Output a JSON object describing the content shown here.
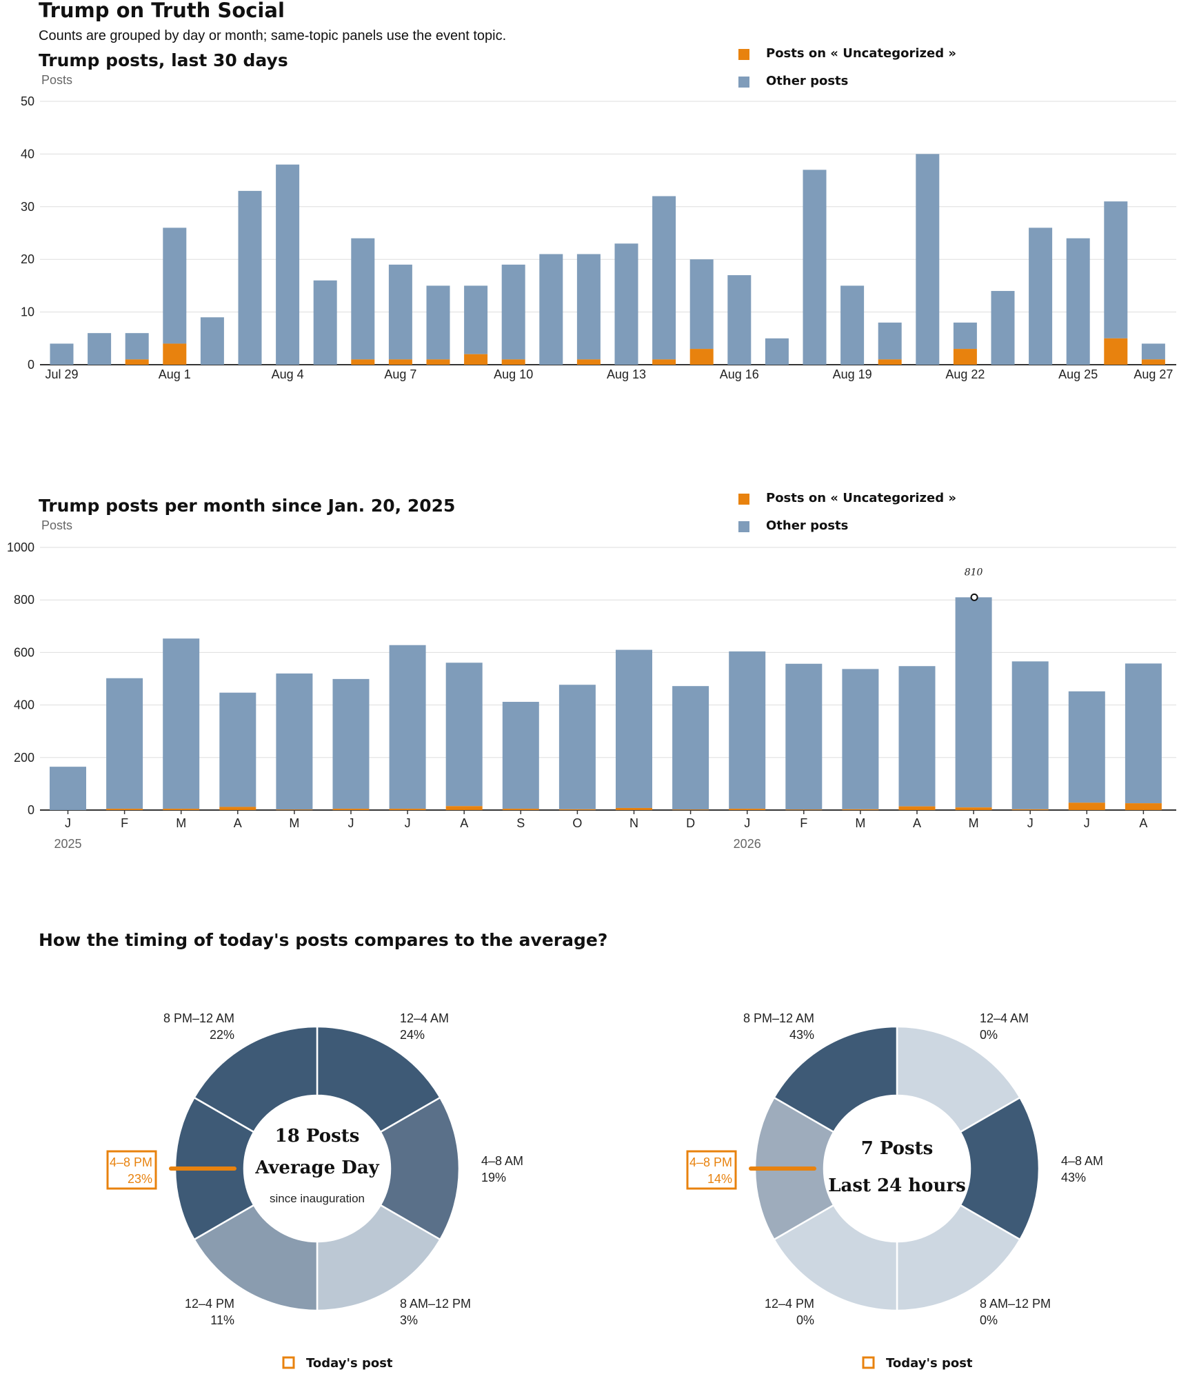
{
  "page": {
    "title": "Trump on Truth Social",
    "subtitle": "Counts are grouped by day or month; same-topic panels use the event topic."
  },
  "colors": {
    "topic": "#e8820e",
    "other": "#7f9cba",
    "donut_dark": "#3e5a76",
    "donut_mid": "#5a7089",
    "donut_light": "#bcc8d4",
    "donut_lighter": "#cdd7e1",
    "donut_gray": "#8a9caf",
    "donut_gray2": "#9eacbc"
  },
  "legend": {
    "topic_label": "Posts on « Uncategorized »",
    "other_label": "Other posts"
  },
  "chart_data": [
    {
      "type": "bar",
      "stacked": true,
      "title": "Trump posts, last 30 days",
      "ylabel": "Posts",
      "ylim": [
        0,
        50
      ],
      "yticks": [
        0,
        10,
        20,
        30,
        40,
        50
      ],
      "categories": [
        "Jul 29",
        "Jul 30",
        "Jul 31",
        "Aug 1",
        "Aug 2",
        "Aug 3",
        "Aug 4",
        "Aug 5",
        "Aug 6",
        "Aug 7",
        "Aug 8",
        "Aug 9",
        "Aug 10",
        "Aug 11",
        "Aug 12",
        "Aug 13",
        "Aug 14",
        "Aug 15",
        "Aug 16",
        "Aug 17",
        "Aug 18",
        "Aug 19",
        "Aug 20",
        "Aug 21",
        "Aug 22",
        "Aug 23",
        "Aug 24",
        "Aug 25",
        "Aug 26",
        "Aug 27"
      ],
      "xtick_labels": [
        {
          "index": 0,
          "label": "Jul 29"
        },
        {
          "index": 3,
          "label": "Aug 1"
        },
        {
          "index": 6,
          "label": "Aug 4"
        },
        {
          "index": 9,
          "label": "Aug 7"
        },
        {
          "index": 12,
          "label": "Aug 10"
        },
        {
          "index": 15,
          "label": "Aug 13"
        },
        {
          "index": 18,
          "label": "Aug 16"
        },
        {
          "index": 21,
          "label": "Aug 19"
        },
        {
          "index": 24,
          "label": "Aug 22"
        },
        {
          "index": 27,
          "label": "Aug 25"
        },
        {
          "index": 29,
          "label": "Aug 27"
        }
      ],
      "series": [
        {
          "name": "Posts on « Uncategorized »",
          "values": [
            0,
            0,
            1,
            4,
            0,
            0,
            0,
            0,
            1,
            1,
            1,
            2,
            1,
            0,
            1,
            0,
            1,
            3,
            0,
            0,
            0,
            0,
            1,
            0,
            3,
            0,
            0,
            0,
            5,
            1
          ]
        },
        {
          "name": "Other posts",
          "values": [
            4,
            6,
            5,
            22,
            9,
            33,
            38,
            16,
            23,
            18,
            14,
            13,
            18,
            21,
            20,
            23,
            31,
            17,
            17,
            5,
            37,
            15,
            7,
            40,
            5,
            14,
            26,
            24,
            26,
            3
          ]
        }
      ],
      "legend_position": "top-right",
      "grid": true
    },
    {
      "type": "bar",
      "stacked": true,
      "title": "Trump posts per month since Jan. 20, 2025",
      "ylabel": "Posts",
      "ylim": [
        0,
        1000
      ],
      "yticks": [
        0,
        200,
        400,
        600,
        800,
        1000
      ],
      "categories": [
        "J",
        "F",
        "M",
        "A",
        "M",
        "J",
        "J",
        "A",
        "S",
        "O",
        "N",
        "D",
        "J",
        "F",
        "M",
        "A",
        "M",
        "J",
        "J",
        "A"
      ],
      "year_labels": [
        {
          "index": 0,
          "label": "2025"
        },
        {
          "index": 12,
          "label": "2026"
        }
      ],
      "series": [
        {
          "name": "Posts on « Uncategorized »",
          "values": [
            0,
            5,
            5,
            12,
            2,
            5,
            5,
            15,
            5,
            3,
            8,
            2,
            5,
            2,
            3,
            14,
            10,
            3,
            28,
            26
          ]
        },
        {
          "name": "Other posts",
          "values": [
            165,
            497,
            648,
            435,
            518,
            494,
            623,
            546,
            407,
            474,
            602,
            470,
            599,
            555,
            534,
            534,
            800,
            563,
            424,
            532
          ]
        }
      ],
      "annotation": {
        "index": 16,
        "label": "810"
      },
      "legend_position": "top-right",
      "grid": true
    },
    {
      "type": "pie",
      "donut": true,
      "center_big_1": "18 Posts",
      "center_big_2": "Average Day",
      "center_small": "since inauguration",
      "slices": [
        {
          "label": "12–4 AM",
          "value": 24,
          "pct": "24%"
        },
        {
          "label": "4–8 AM",
          "value": 19,
          "pct": "19%"
        },
        {
          "label": "8 AM–12 PM",
          "value": 3,
          "pct": "3%"
        },
        {
          "label": "12–4 PM",
          "value": 11,
          "pct": "11%"
        },
        {
          "label": "4–8 PM",
          "value": 23,
          "pct": "23%",
          "current": true
        },
        {
          "label": "8 PM–12 AM",
          "value": 22,
          "pct": "22%"
        }
      ],
      "legend_label": "Today's post"
    },
    {
      "type": "pie",
      "donut": true,
      "center_big_1": "7 Posts",
      "center_big_2": "Last 24 hours",
      "center_small": "",
      "slices": [
        {
          "label": "12–4 AM",
          "value": 0,
          "pct": "0%"
        },
        {
          "label": "4–8 AM",
          "value": 43,
          "pct": "43%"
        },
        {
          "label": "8 AM–12 PM",
          "value": 0,
          "pct": "0%"
        },
        {
          "label": "12–4 PM",
          "value": 0,
          "pct": "0%"
        },
        {
          "label": "4–8 PM",
          "value": 14,
          "pct": "14%",
          "current": true
        },
        {
          "label": "8 PM–12 AM",
          "value": 43,
          "pct": "43%"
        }
      ],
      "legend_label": "Today's post"
    }
  ],
  "section3": {
    "title": "How the timing of today's posts compares to the average?"
  }
}
